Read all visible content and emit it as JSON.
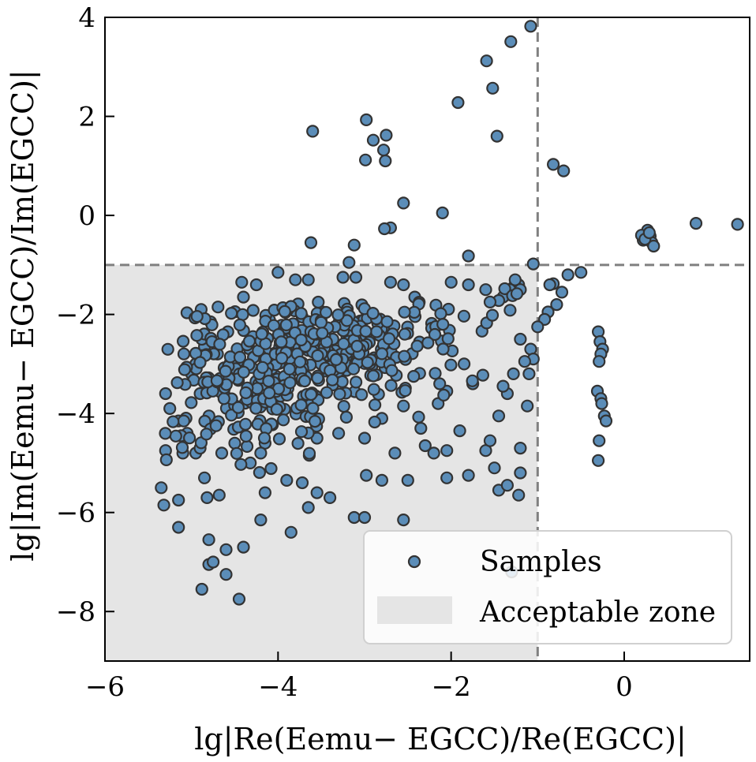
{
  "chart_data": {
    "type": "scatter",
    "xlabel": "lg|Re(Eemu−   EGCC)/Re(EGCC)|",
    "ylabel": "lg|Im(Eemu−   EGCC)/Im(EGCC)|",
    "xlim": [
      -6,
      1.45
    ],
    "ylim": [
      -9,
      4
    ],
    "xticks": [
      -6,
      -4,
      -2,
      0
    ],
    "yticks": [
      -8,
      -6,
      -4,
      -2,
      0,
      2,
      4
    ],
    "xtick_labels": [
      "−6",
      "−4",
      "−2",
      "0"
    ],
    "ytick_labels": [
      "−8",
      "−6",
      "−4",
      "−2",
      "0",
      "2",
      "4"
    ],
    "threshold_x": -1,
    "threshold_y": -1,
    "acceptable_zone": {
      "x": [
        -6,
        -1
      ],
      "y": [
        -9,
        -1
      ]
    },
    "legend": {
      "position": "lower-right",
      "entries": [
        "Samples",
        "Acceptable zone"
      ]
    },
    "colors": {
      "marker_fill": "#5b8db8",
      "marker_edge": "#333333",
      "zone": "#e5e5e5",
      "threshold_line": "#808080"
    },
    "points": [
      [
        -1.08,
        3.82
      ],
      [
        -1.31,
        3.51
      ],
      [
        -1.59,
        3.12
      ],
      [
        -1.52,
        2.57
      ],
      [
        -1.47,
        1.6
      ],
      [
        -1.92,
        2.28
      ],
      [
        -2.98,
        1.93
      ],
      [
        -2.9,
        1.52
      ],
      [
        -2.75,
        1.62
      ],
      [
        -2.78,
        1.32
      ],
      [
        -2.76,
        1.1
      ],
      [
        -2.99,
        1.12
      ],
      [
        -3.6,
        1.7
      ],
      [
        -2.55,
        0.25
      ],
      [
        -2.7,
        -0.25
      ],
      [
        -2.77,
        -0.27
      ],
      [
        -2.1,
        0.05
      ],
      [
        -3.62,
        -0.55
      ],
      [
        -3.12,
        -0.6
      ],
      [
        -1.8,
        -0.82
      ],
      [
        -3.18,
        -0.95
      ],
      [
        -0.82,
        1.03
      ],
      [
        -0.7,
        0.9
      ],
      [
        0.83,
        -0.16
      ],
      [
        1.31,
        -0.18
      ],
      [
        0.25,
        -0.38
      ],
      [
        0.28,
        -0.45
      ],
      [
        0.22,
        -0.5
      ],
      [
        0.3,
        -0.42
      ],
      [
        0.32,
        -0.55
      ],
      [
        0.27,
        -0.3
      ],
      [
        0.2,
        -0.4
      ],
      [
        0.34,
        -0.62
      ],
      [
        0.24,
        -0.48
      ],
      [
        0.29,
        -0.35
      ],
      [
        -1.05,
        -0.98
      ],
      [
        -0.65,
        -1.2
      ],
      [
        -0.5,
        -1.15
      ],
      [
        -0.82,
        -1.38
      ],
      [
        -0.72,
        -1.55
      ],
      [
        -0.78,
        -1.8
      ],
      [
        -0.88,
        -1.95
      ],
      [
        -0.92,
        -2.1
      ],
      [
        -1.0,
        -2.25
      ],
      [
        -0.86,
        -1.4
      ],
      [
        -1.25,
        -1.35
      ],
      [
        -1.28,
        -1.45
      ],
      [
        -1.3,
        -1.55
      ],
      [
        -1.35,
        -1.6
      ],
      [
        -1.22,
        -1.4
      ],
      [
        -1.32,
        -1.5
      ],
      [
        -1.4,
        -1.65
      ],
      [
        -1.26,
        -1.3
      ],
      [
        -1.2,
        -1.5
      ],
      [
        -1.45,
        -1.72
      ],
      [
        -1.38,
        -1.48
      ],
      [
        -1.29,
        -1.62
      ],
      [
        -1.24,
        -1.58
      ],
      [
        -0.3,
        -2.35
      ],
      [
        -0.28,
        -2.55
      ],
      [
        -0.25,
        -2.7
      ],
      [
        -0.27,
        -2.8
      ],
      [
        -0.29,
        -2.95
      ],
      [
        -0.31,
        -3.55
      ],
      [
        -0.27,
        -3.7
      ],
      [
        -0.26,
        -3.8
      ],
      [
        -0.23,
        -4.05
      ],
      [
        -0.21,
        -4.15
      ],
      [
        -0.29,
        -4.55
      ],
      [
        -0.3,
        -4.95
      ],
      [
        -5.35,
        -5.5
      ],
      [
        -5.32,
        -5.85
      ],
      [
        -5.15,
        -5.75
      ],
      [
        -5.15,
        -6.3
      ],
      [
        -4.85,
        -5.3
      ],
      [
        -4.82,
        -5.7
      ],
      [
        -4.68,
        -5.65
      ],
      [
        -4.6,
        -6.75
      ],
      [
        -4.4,
        -6.7
      ],
      [
        -4.8,
        -6.55
      ],
      [
        -4.88,
        -7.55
      ],
      [
        -4.8,
        -7.05
      ],
      [
        -4.6,
        -7.25
      ],
      [
        -4.45,
        -7.75
      ],
      [
        -4.75,
        -7.0
      ],
      [
        -4.2,
        -6.15
      ],
      [
        -4.15,
        -5.6
      ],
      [
        -3.85,
        -6.4
      ],
      [
        -3.9,
        -5.35
      ],
      [
        -3.65,
        -5.9
      ],
      [
        -3.72,
        -5.4
      ],
      [
        -3.55,
        -5.6
      ],
      [
        -3.4,
        -5.7
      ],
      [
        -3.12,
        -6.1
      ],
      [
        -3.0,
        -6.1
      ],
      [
        -2.98,
        -5.25
      ],
      [
        -2.8,
        -5.35
      ],
      [
        -2.55,
        -6.15
      ],
      [
        -2.5,
        -5.35
      ],
      [
        -2.3,
        -4.65
      ],
      [
        -2.2,
        -4.8
      ],
      [
        -2.05,
        -4.75
      ],
      [
        -2.05,
        -5.3
      ],
      [
        -1.9,
        -4.35
      ],
      [
        -1.8,
        -5.25
      ],
      [
        -1.6,
        -4.75
      ],
      [
        -1.55,
        -4.55
      ],
      [
        -1.5,
        -5.1
      ],
      [
        -1.45,
        -5.55
      ],
      [
        -1.35,
        -5.45
      ],
      [
        -1.22,
        -5.65
      ],
      [
        -1.2,
        -4.7
      ],
      [
        -1.2,
        -5.2
      ],
      [
        -1.3,
        -7.2
      ],
      [
        -1.45,
        -4.05
      ],
      [
        -1.12,
        -3.85
      ],
      [
        -1.2,
        -2.5
      ],
      [
        -1.08,
        -2.7
      ],
      [
        -1.05,
        -2.9
      ],
      [
        -1.15,
        -2.95
      ],
      [
        -1.1,
        -3.2
      ],
      [
        -4.0,
        -1.15
      ],
      [
        -3.8,
        -1.3
      ],
      [
        -3.65,
        -1.3
      ],
      [
        -4.42,
        -1.35
      ],
      [
        -4.4,
        -1.65
      ],
      [
        -4.25,
        -1.4
      ],
      [
        -3.25,
        -1.25
      ],
      [
        -3.1,
        -1.25
      ],
      [
        -2.55,
        -1.4
      ],
      [
        -2.42,
        -1.65
      ],
      [
        -2.7,
        -1.35
      ],
      [
        -2.0,
        -1.35
      ],
      [
        -1.8,
        -1.4
      ],
      [
        -1.6,
        -1.5
      ],
      [
        -1.55,
        -1.75
      ],
      [
        -4.15,
        -4.6
      ],
      [
        -4.2,
        -4.8
      ],
      [
        -4.32,
        -5.0
      ],
      [
        -4.5,
        -4.6
      ],
      [
        -4.65,
        -4.8
      ],
      [
        -5.1,
        -4.8
      ],
      [
        -5.05,
        -4.4
      ],
      [
        -5.3,
        -4.75
      ],
      [
        -4.95,
        -4.8
      ],
      [
        -4.9,
        -4.7
      ],
      [
        -5.25,
        -3.9
      ],
      [
        -5.3,
        -3.6
      ],
      [
        -5.15,
        -4.15
      ],
      [
        -5.12,
        -4.45
      ],
      [
        -4.85,
        -2.65
      ],
      [
        -4.78,
        -2.15
      ],
      [
        -4.58,
        -2.35
      ],
      [
        -4.7,
        -2.8
      ],
      [
        -4.88,
        -2.5
      ],
      [
        -4.95,
        -3.0
      ],
      [
        -5.0,
        -3.2
      ],
      [
        -4.9,
        -3.6
      ],
      [
        -3.3,
        -4.4
      ],
      [
        -3.55,
        -4.5
      ],
      [
        -3.0,
        -4.5
      ],
      [
        -2.8,
        -4.1
      ],
      [
        -2.65,
        -4.8
      ],
      [
        -2.35,
        -4.3
      ],
      [
        -2.05,
        -3.55
      ],
      [
        -2.15,
        -3.8
      ],
      [
        -2.55,
        -3.85
      ],
      [
        -1.75,
        -3.4
      ],
      [
        -1.85,
        -3.0
      ],
      [
        -1.35,
        -3.6
      ],
      [
        -1.4,
        -3.45
      ],
      [
        -1.28,
        -3.2
      ]
    ],
    "cluster_seed": 7,
    "cluster_count": 480,
    "cluster_center": [
      -3.6,
      -2.85
    ],
    "cluster_spread": [
      0.85,
      0.75
    ]
  }
}
